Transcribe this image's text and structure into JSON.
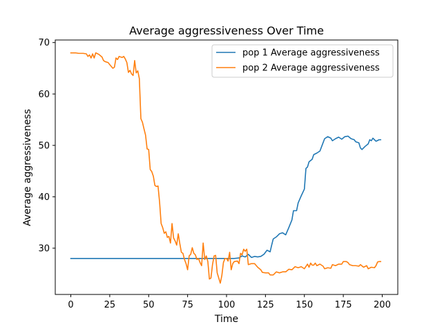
{
  "chart_data": {
    "type": "line",
    "title": "Average aggressiveness Over Time",
    "xlabel": "Time",
    "ylabel": "Average aggressiveness",
    "xlim": [
      -10,
      210
    ],
    "ylim": [
      21,
      70.5
    ],
    "xticks": [
      0,
      25,
      50,
      75,
      100,
      125,
      150,
      175,
      200
    ],
    "yticks": [
      30,
      40,
      50,
      60,
      70
    ],
    "grid": false,
    "legend_position": "top-right",
    "series": [
      {
        "name": "pop 1 Average aggressiveness",
        "color": "#1f77b4",
        "points": [
          [
            0,
            28
          ],
          [
            5,
            28
          ],
          [
            10,
            28
          ],
          [
            20,
            28
          ],
          [
            30,
            28
          ],
          [
            40,
            28
          ],
          [
            50,
            28
          ],
          [
            60,
            28
          ],
          [
            70,
            28
          ],
          [
            80,
            28
          ],
          [
            90,
            28
          ],
          [
            100,
            28
          ],
          [
            105,
            28
          ],
          [
            108,
            28.1
          ],
          [
            110,
            28.5
          ],
          [
            112,
            28.3
          ],
          [
            114,
            28.8
          ],
          [
            116,
            28.2
          ],
          [
            118,
            28.4
          ],
          [
            120,
            28.3
          ],
          [
            122,
            28.4
          ],
          [
            124,
            28.8
          ],
          [
            126,
            29.6
          ],
          [
            128,
            29.3
          ],
          [
            129,
            30.6
          ],
          [
            130,
            31.8
          ],
          [
            132,
            32.2
          ],
          [
            134,
            32.8
          ],
          [
            136,
            33.0
          ],
          [
            138,
            32.6
          ],
          [
            140,
            34.0
          ],
          [
            142,
            35.5
          ],
          [
            143,
            37.3
          ],
          [
            145,
            37.3
          ],
          [
            146,
            38.8
          ],
          [
            148,
            40.2
          ],
          [
            150,
            41.5
          ],
          [
            151,
            45.5
          ],
          [
            152,
            45.8
          ],
          [
            153,
            46.8
          ],
          [
            155,
            47.3
          ],
          [
            156,
            48.2
          ],
          [
            158,
            48.5
          ],
          [
            160,
            48.9
          ],
          [
            162,
            50.5
          ],
          [
            163,
            51.3
          ],
          [
            165,
            51.7
          ],
          [
            167,
            51.4
          ],
          [
            168,
            50.9
          ],
          [
            170,
            51.3
          ],
          [
            172,
            51.6
          ],
          [
            174,
            51.2
          ],
          [
            176,
            51.7
          ],
          [
            178,
            51.8
          ],
          [
            180,
            51.3
          ],
          [
            182,
            51.1
          ],
          [
            183,
            50.7
          ],
          [
            185,
            50.5
          ],
          [
            186,
            49.5
          ],
          [
            187,
            49.2
          ],
          [
            189,
            49.8
          ],
          [
            191,
            50.3
          ],
          [
            192,
            51.1
          ],
          [
            193,
            50.9
          ],
          [
            194,
            51.4
          ],
          [
            196,
            50.8
          ],
          [
            198,
            51.1
          ],
          [
            199,
            51.1
          ]
        ]
      },
      {
        "name": "pop 2 Average aggressiveness",
        "color": "#ff7f0e",
        "points": [
          [
            0,
            68
          ],
          [
            3,
            68
          ],
          [
            5,
            67.9
          ],
          [
            8,
            67.9
          ],
          [
            10,
            67.8
          ],
          [
            11,
            67.3
          ],
          [
            12,
            67.6
          ],
          [
            13,
            67
          ],
          [
            14,
            67.8
          ],
          [
            15,
            67
          ],
          [
            16,
            68
          ],
          [
            18,
            67.7
          ],
          [
            20,
            67.2
          ],
          [
            21,
            66.5
          ],
          [
            22,
            66.3
          ],
          [
            24,
            66.1
          ],
          [
            25,
            65.7
          ],
          [
            27,
            65.0
          ],
          [
            28,
            65.2
          ],
          [
            29,
            67.0
          ],
          [
            30,
            66.7
          ],
          [
            31,
            67.3
          ],
          [
            33,
            67.1
          ],
          [
            34,
            67.3
          ],
          [
            35,
            66.8
          ],
          [
            36,
            66.1
          ],
          [
            37,
            64.2
          ],
          [
            38,
            64.6
          ],
          [
            39,
            63.9
          ],
          [
            40,
            63.6
          ],
          [
            41,
            66.5
          ],
          [
            42,
            64.1
          ],
          [
            43,
            64.5
          ],
          [
            44,
            63.0
          ],
          [
            45,
            55.2
          ],
          [
            46,
            54.5
          ],
          [
            47,
            53.2
          ],
          [
            48,
            52.0
          ],
          [
            49,
            49.3
          ],
          [
            50,
            49.2
          ],
          [
            51,
            45.3
          ],
          [
            52,
            44.9
          ],
          [
            53,
            44.0
          ],
          [
            54,
            42.2
          ],
          [
            55,
            42.0
          ],
          [
            56,
            42.1
          ],
          [
            57,
            39.0
          ],
          [
            58,
            34.8
          ],
          [
            59,
            34.0
          ],
          [
            60,
            32.9
          ],
          [
            61,
            33.2
          ],
          [
            62,
            32.1
          ],
          [
            63,
            32.3
          ],
          [
            64,
            31.0
          ],
          [
            65,
            34.8
          ],
          [
            66,
            32.0
          ],
          [
            67,
            31.4
          ],
          [
            68,
            30.6
          ],
          [
            69,
            32.8
          ],
          [
            70,
            30.9
          ],
          [
            71,
            29.2
          ],
          [
            72,
            29.0
          ],
          [
            73,
            27.8
          ],
          [
            74,
            27.0
          ],
          [
            75,
            25.8
          ],
          [
            76,
            28.5
          ],
          [
            77,
            28.8
          ],
          [
            78,
            30.1
          ],
          [
            79,
            29.0
          ],
          [
            80,
            28.7
          ],
          [
            81,
            27.8
          ],
          [
            82,
            28.0
          ],
          [
            83,
            27.2
          ],
          [
            84,
            26.6
          ],
          [
            85,
            31.0
          ],
          [
            86,
            27.8
          ],
          [
            87,
            28.5
          ],
          [
            88,
            27.4
          ],
          [
            89,
            24.0
          ],
          [
            90,
            24.2
          ],
          [
            91,
            26.8
          ],
          [
            92,
            28.5
          ],
          [
            93,
            28.6
          ],
          [
            94,
            25.2
          ],
          [
            95,
            24.2
          ],
          [
            96,
            23.2
          ],
          [
            97,
            24.7
          ],
          [
            98,
            27.2
          ],
          [
            99,
            28.0
          ],
          [
            100,
            28.0
          ],
          [
            101,
            27.5
          ],
          [
            102,
            29.2
          ],
          [
            103,
            25.8
          ],
          [
            104,
            27.0
          ],
          [
            105,
            27.4
          ],
          [
            107,
            27.5
          ],
          [
            108,
            27.0
          ],
          [
            109,
            29.0
          ],
          [
            110,
            28.7
          ],
          [
            111,
            29.8
          ],
          [
            112,
            29.4
          ],
          [
            113,
            29.8
          ],
          [
            114,
            26.8
          ],
          [
            115,
            26.9
          ],
          [
            116,
            27.0
          ],
          [
            118,
            27.0
          ],
          [
            120,
            26.3
          ],
          [
            122,
            25.8
          ],
          [
            123,
            25.3
          ],
          [
            125,
            25.2
          ],
          [
            127,
            25.2
          ],
          [
            128,
            24.8
          ],
          [
            130,
            24.8
          ],
          [
            132,
            25.4
          ],
          [
            134,
            25.2
          ],
          [
            136,
            25.4
          ],
          [
            138,
            25.4
          ],
          [
            140,
            25.9
          ],
          [
            142,
            25.8
          ],
          [
            144,
            26.4
          ],
          [
            146,
            26.2
          ],
          [
            148,
            26.4
          ],
          [
            150,
            26.0
          ],
          [
            152,
            26.9
          ],
          [
            153,
            26.3
          ],
          [
            154,
            27.1
          ],
          [
            155,
            26.7
          ],
          [
            156,
            26.7
          ],
          [
            157,
            27.1
          ],
          [
            158,
            26.6
          ],
          [
            160,
            26.9
          ],
          [
            162,
            26.5
          ],
          [
            163,
            26.0
          ],
          [
            165,
            26.2
          ],
          [
            167,
            26.1
          ],
          [
            168,
            26.8
          ],
          [
            170,
            26.6
          ],
          [
            172,
            26.9
          ],
          [
            174,
            26.9
          ],
          [
            175,
            27.4
          ],
          [
            177,
            27.4
          ],
          [
            178,
            27.2
          ],
          [
            179,
            26.8
          ],
          [
            181,
            26.6
          ],
          [
            183,
            26.6
          ],
          [
            185,
            26.5
          ],
          [
            186,
            26.8
          ],
          [
            188,
            26.3
          ],
          [
            190,
            26.6
          ],
          [
            191,
            26.0
          ],
          [
            193,
            26.3
          ],
          [
            195,
            26.2
          ],
          [
            196,
            26.6
          ],
          [
            197,
            27.3
          ],
          [
            198,
            27.4
          ],
          [
            199,
            27.4
          ]
        ]
      }
    ]
  }
}
